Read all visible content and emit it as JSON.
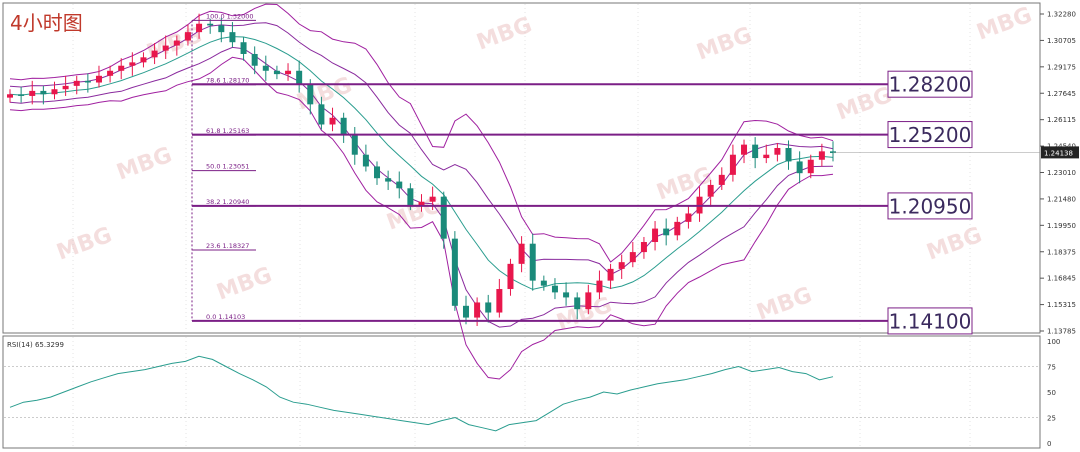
{
  "title": "4小时图",
  "colors": {
    "up": "#e8174c",
    "down": "#1a8a7a",
    "band_outer": "#a020a0",
    "band_inner": "#8a2b9e",
    "band_mid": "#2a9d8f",
    "level_line": "#7b1f86",
    "fib_text": "#7b1f86",
    "rsi_line": "#2a9d8f",
    "axis_text": "#333333",
    "grid": "#c8c8c8",
    "watermark": "#f3d9d9"
  },
  "watermark_text": "MBG",
  "price_axis": {
    "min": 1.135,
    "max": 1.325,
    "ticks": [
      "1.32280",
      "1.30705",
      "1.29175",
      "1.27645",
      "1.26115",
      "1.24540",
      "1.23010",
      "1.21480",
      "1.19950",
      "1.18375",
      "1.16845",
      "1.15315",
      "1.13785"
    ],
    "current_price": "1.24138"
  },
  "fib_levels": [
    {
      "label": "100.0",
      "price": "1.32000"
    },
    {
      "label": "78.6",
      "price": "1.28170"
    },
    {
      "label": "61.8",
      "price": "1.25163"
    },
    {
      "label": "50.0",
      "price": "1.23051"
    },
    {
      "label": "38.2",
      "price": "1.20940"
    },
    {
      "label": "23.6",
      "price": "1.18327"
    },
    {
      "label": "0.0",
      "price": "1.14103"
    }
  ],
  "key_levels": [
    "1.28200",
    "1.25200",
    "1.20950",
    "1.14100"
  ],
  "rsi": {
    "label": "RSI(14) 65.3299",
    "ticks": [
      "100",
      "75",
      "50",
      "25",
      "0"
    ],
    "levels": [
      75,
      25
    ]
  },
  "chart_data": {
    "type": "line",
    "title": "4小时图",
    "xlabel": "",
    "ylabel": "",
    "ylim": [
      1.135,
      1.325
    ],
    "series": [
      {
        "values": [
          1.276,
          1.275,
          1.278,
          1.276,
          1.279,
          1.281,
          1.284,
          1.283,
          1.287,
          1.29,
          1.293,
          1.295,
          1.298,
          1.302,
          1.305,
          1.308,
          1.313,
          1.318,
          1.317,
          1.313,
          1.307,
          1.3,
          1.293,
          1.29,
          1.288,
          1.29,
          1.282,
          1.27,
          1.258,
          1.262,
          1.252,
          1.24,
          1.233,
          1.226,
          1.224,
          1.22,
          1.21,
          1.212,
          1.215,
          1.19,
          1.15,
          1.143,
          1.152,
          1.146,
          1.16,
          1.175,
          1.187,
          1.165,
          1.162,
          1.158,
          1.155,
          1.148,
          1.158,
          1.165,
          1.172,
          1.176,
          1.182,
          1.188,
          1.196,
          1.192,
          1.2,
          1.205,
          1.215,
          1.222,
          1.228,
          1.24,
          1.246,
          1.238,
          1.24,
          1.244,
          1.236,
          1.229,
          1.237,
          1.242,
          1.241
        ]
      },
      {
        "name": "RSI(14)",
        "values": [
          35,
          40,
          42,
          45,
          50,
          55,
          60,
          64,
          68,
          70,
          72,
          75,
          78,
          80,
          85,
          82,
          75,
          68,
          62,
          55,
          45,
          40,
          38,
          35,
          32,
          30,
          28,
          26,
          24,
          22,
          20,
          18,
          22,
          25,
          18,
          15,
          12,
          18,
          20,
          22,
          30,
          38,
          42,
          45,
          50,
          48,
          52,
          55,
          58,
          60,
          62,
          65,
          68,
          72,
          75,
          70,
          72,
          74,
          70,
          68,
          62,
          65
        ]
      }
    ]
  }
}
